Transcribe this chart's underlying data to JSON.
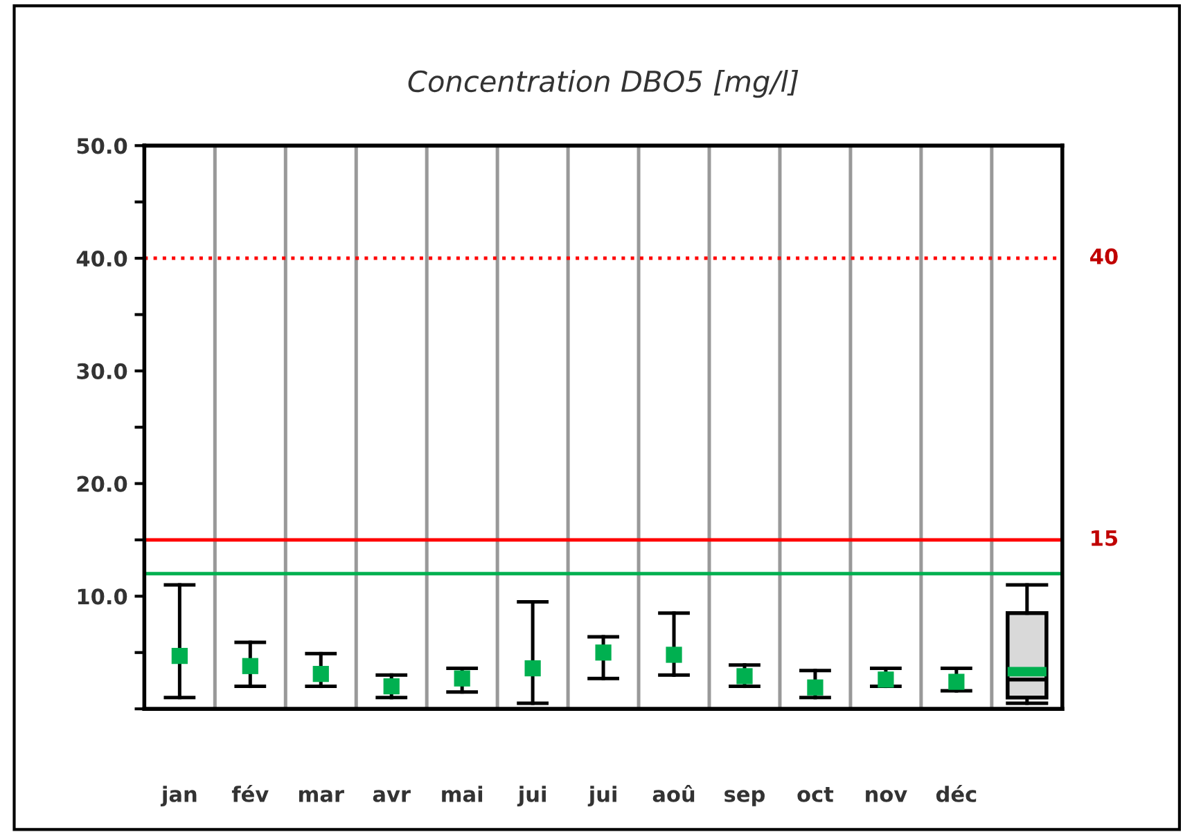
{
  "chart_data": {
    "type": "box",
    "title": "Concentration DBO5 [mg/l]",
    "categories": [
      "jan",
      "fév",
      "mar",
      "avr",
      "mai",
      "jui",
      "jui",
      "aoû",
      "sep",
      "oct",
      "nov",
      "déc",
      null
    ],
    "series": [
      {
        "type": "scatter",
        "color": "#00b050",
        "marker": "square",
        "values": [
          4.7,
          3.8,
          3.1,
          2.0,
          2.7,
          3.6,
          5.0,
          4.8,
          2.9,
          1.9,
          2.6,
          2.4,
          null
        ],
        "errors": [
          [
            1.0,
            11.0
          ],
          [
            2.0,
            5.9
          ],
          [
            2.0,
            4.9
          ],
          [
            1.0,
            3.0
          ],
          [
            1.5,
            3.6
          ],
          [
            0.5,
            9.5
          ],
          [
            2.7,
            6.4
          ],
          [
            3.0,
            8.5
          ],
          [
            2.0,
            3.9
          ],
          [
            1.0,
            3.4
          ],
          [
            2.0,
            3.6
          ],
          [
            1.6,
            3.6
          ],
          null
        ]
      },
      {
        "type": "box",
        "color": "#d9d9d9",
        "boxes": [
          null,
          null,
          null,
          null,
          null,
          null,
          null,
          null,
          null,
          null,
          null,
          null,
          {
            "low": 0.5,
            "q1": 1.0,
            "median": 2.6,
            "q3": 8.5,
            "high": 11.0,
            "mean": 3.3
          }
        ]
      }
    ],
    "ylim": [
      0,
      50
    ],
    "yticks": [
      {
        "value": 0,
        "label": null
      },
      {
        "value": 5,
        "label": null
      },
      {
        "value": 10,
        "label": "10.0"
      },
      {
        "value": 15,
        "label": null
      },
      {
        "value": 20,
        "label": "20.0"
      },
      {
        "value": 25,
        "label": null
      },
      {
        "value": 30,
        "label": "30.0"
      },
      {
        "value": 35,
        "label": null
      },
      {
        "value": 40,
        "label": "40.0"
      },
      {
        "value": 45,
        "label": null
      },
      {
        "value": 50,
        "label": "50.0"
      }
    ],
    "ref_lines": [
      {
        "axis": "y",
        "value": 40,
        "label": "40",
        "color": "#ff0000",
        "line_style": "dotted"
      },
      {
        "axis": "y",
        "value": 15,
        "label": "15",
        "color": "#ff0000",
        "line_style": "solid"
      },
      {
        "axis": "y",
        "value": 12,
        "label": null,
        "color": "#00b050",
        "line_style": "solid"
      }
    ],
    "grid": "x"
  }
}
